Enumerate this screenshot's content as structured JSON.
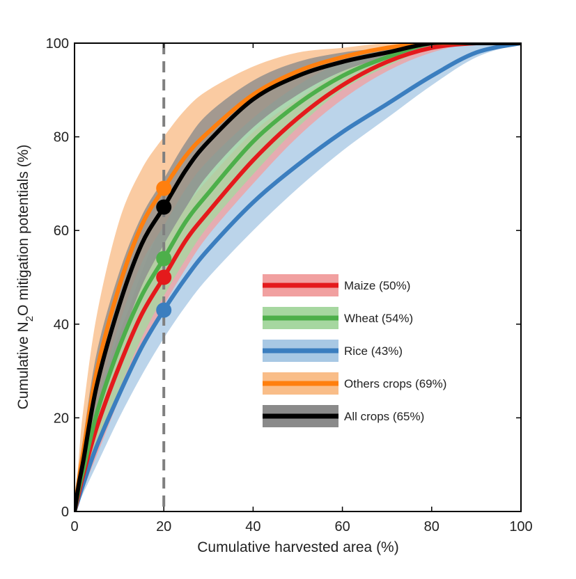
{
  "chart_data": {
    "type": "line",
    "xlabel": "Cumulative harvested area  (%)",
    "ylabel_pre": "Cumulative N",
    "ylabel_sub": "2",
    "ylabel_post": "O mitigation potentials  (%)",
    "xlim": [
      0,
      100
    ],
    "ylim": [
      0,
      100
    ],
    "x_ticks": [
      0,
      20,
      40,
      60,
      80,
      100
    ],
    "y_ticks": [
      0,
      20,
      40,
      60,
      80,
      100
    ],
    "reference_x": 20,
    "legend_position": "lower-right",
    "x": [
      0,
      1,
      2,
      5,
      10,
      15,
      20,
      25,
      30,
      40,
      50,
      60,
      70,
      80,
      90,
      100
    ],
    "series": [
      {
        "name": "Rice (43%)",
        "line_color": "#3b7ebf",
        "band_color": "#a8c8e4",
        "marker_y": 43,
        "y": [
          0,
          3,
          6,
          14,
          25,
          35,
          43,
          50,
          56,
          66,
          74,
          81,
          87,
          93,
          98,
          100
        ],
        "lower": [
          0,
          2,
          4,
          10,
          20,
          29,
          37,
          44,
          50,
          60,
          69,
          77,
          84,
          91,
          97,
          100
        ],
        "upper": [
          0,
          5,
          10,
          22,
          37,
          51,
          62,
          70,
          77,
          87,
          93,
          96,
          98,
          99,
          100,
          100
        ]
      },
      {
        "name": "Maize (50%)",
        "line_color": "#e41a1c",
        "band_color": "#f1a0a0",
        "marker_y": 50,
        "y": [
          0,
          4,
          8,
          18,
          31,
          42,
          50,
          58,
          64,
          75,
          84,
          91,
          96,
          99,
          100,
          100
        ],
        "lower": [
          0,
          3,
          5,
          12,
          24,
          35,
          44,
          52,
          59,
          70,
          80,
          88,
          94,
          98,
          100,
          100
        ],
        "upper": [
          0,
          6,
          11,
          23,
          38,
          49,
          57,
          65,
          71,
          81,
          88,
          94,
          98,
          100,
          100,
          100
        ]
      },
      {
        "name": "Wheat (54%)",
        "line_color": "#4daf4a",
        "band_color": "#a6d7a0",
        "marker_y": 54,
        "y": [
          0,
          5,
          9,
          21,
          35,
          46,
          54,
          62,
          68,
          79,
          87,
          93,
          97,
          100,
          100,
          100
        ],
        "lower": [
          0,
          3,
          6,
          14,
          26,
          37,
          46,
          54,
          61,
          72,
          82,
          90,
          95,
          99,
          100,
          100
        ],
        "upper": [
          0,
          8,
          14,
          30,
          46,
          57,
          65,
          72,
          78,
          88,
          94,
          97,
          99,
          100,
          100,
          100
        ]
      },
      {
        "name": "Others crops (69%)",
        "line_color": "#ff7f0e",
        "band_color": "#f9bd88",
        "marker_y": 69,
        "y": [
          0,
          7,
          13,
          30,
          48,
          61,
          69,
          76,
          81,
          89,
          94,
          97,
          99,
          100,
          100,
          100
        ],
        "lower": [
          0,
          5,
          10,
          23,
          40,
          53,
          61,
          69,
          75,
          84,
          91,
          96,
          99,
          100,
          100,
          100
        ],
        "upper": [
          0,
          12,
          22,
          42,
          62,
          73,
          80,
          86,
          90,
          95,
          98,
          99,
          100,
          100,
          100,
          100
        ]
      },
      {
        "name": "All crops (65%)",
        "line_color": "#000000",
        "band_color": "#8a8a8a",
        "marker_y": 65,
        "y": [
          0,
          6,
          11,
          27,
          44,
          57,
          65,
          73,
          79,
          88,
          93,
          96,
          98,
          100,
          100,
          100
        ],
        "lower": [
          0,
          4,
          8,
          20,
          35,
          48,
          57,
          65,
          72,
          82,
          89,
          94,
          97,
          99,
          100,
          100
        ],
        "upper": [
          0,
          9,
          16,
          34,
          51,
          63,
          71,
          79,
          85,
          92,
          96,
          98,
          99,
          100,
          100,
          100
        ]
      }
    ],
    "legend_order": [
      1,
      2,
      0,
      3,
      4
    ]
  }
}
